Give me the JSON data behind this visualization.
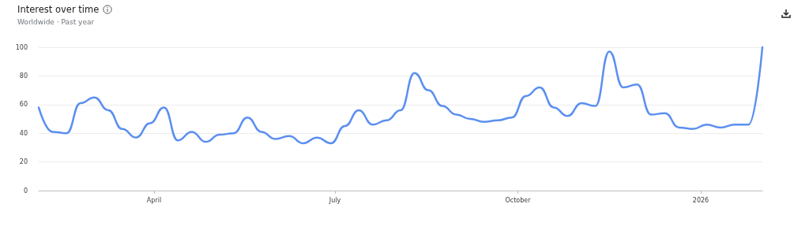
{
  "chart_data": {
    "type": "line",
    "title": "Interest over time",
    "subtitle": "Worldwide · Past year",
    "x": [
      "2025-02-02",
      "2025-02-09",
      "2025-02-16",
      "2025-02-23",
      "2025-03-02",
      "2025-03-09",
      "2025-03-16",
      "2025-03-23",
      "2025-03-30",
      "2025-04-06",
      "2025-04-13",
      "2025-04-20",
      "2025-04-27",
      "2025-05-04",
      "2025-05-11",
      "2025-05-18",
      "2025-05-25",
      "2025-06-01",
      "2025-06-08",
      "2025-06-15",
      "2025-06-22",
      "2025-06-29",
      "2025-07-06",
      "2025-07-13",
      "2025-07-20",
      "2025-07-27",
      "2025-08-03",
      "2025-08-10",
      "2025-08-17",
      "2025-08-24",
      "2025-08-31",
      "2025-09-07",
      "2025-09-14",
      "2025-09-21",
      "2025-09-28",
      "2025-10-05",
      "2025-10-12",
      "2025-10-19",
      "2025-10-26",
      "2025-11-02",
      "2025-11-09",
      "2025-11-16",
      "2025-11-23",
      "2025-11-30",
      "2025-12-07",
      "2025-12-14",
      "2025-12-21",
      "2025-12-28",
      "2026-01-04",
      "2026-01-11",
      "2026-01-18",
      "2026-01-25",
      "2026-02-01"
    ],
    "series": [
      {
        "color": "#5b8ff0",
        "values": [
          58,
          41,
          40,
          61,
          65,
          56,
          43,
          37,
          47,
          58,
          35,
          41,
          34,
          39,
          40,
          51,
          41,
          36,
          38,
          33,
          37,
          33,
          45,
          56,
          46,
          49,
          56,
          82,
          70,
          59,
          53,
          50,
          48,
          49,
          51,
          66,
          72,
          58,
          52,
          61,
          59,
          97,
          72,
          74,
          53,
          54,
          44,
          43,
          46,
          44,
          46,
          46,
          100
        ]
      }
    ],
    "xlim": [
      "2025-02-02",
      "2026-02-01"
    ],
    "xticks": [
      {
        "value": "2025-04-01",
        "label": "April"
      },
      {
        "value": "2025-07-01",
        "label": "July"
      },
      {
        "value": "2025-10-01",
        "label": "October"
      },
      {
        "value": "2026-01-01",
        "label": "2026"
      }
    ],
    "ylim": [
      0,
      100
    ],
    "yticks": [
      0,
      20,
      40,
      60,
      80,
      100
    ],
    "grid": "y",
    "marker": "none",
    "line_style": "solid"
  }
}
